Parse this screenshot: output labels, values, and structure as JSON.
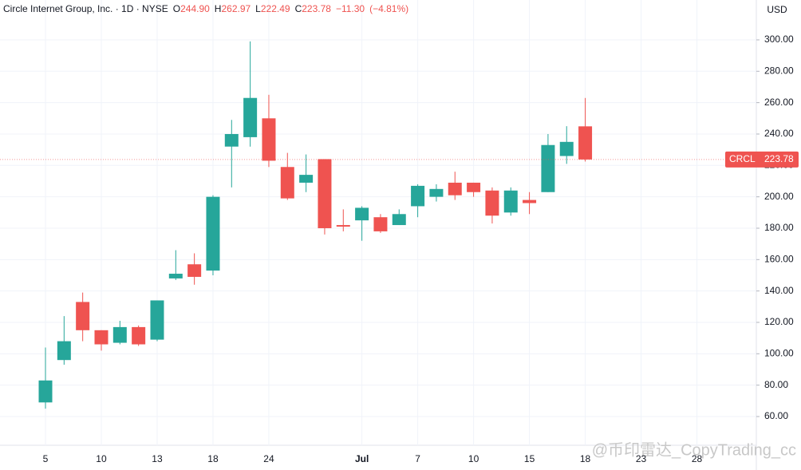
{
  "chart_data": {
    "type": "candlestick",
    "title": "Circle Internet Group, Inc. · 1D · NYSE",
    "legend_values": [
      {
        "name": "O",
        "value": 244.9,
        "label": "244.90"
      },
      {
        "name": "H",
        "value": 262.97,
        "label": "262.97"
      },
      {
        "name": "L",
        "value": 222.49,
        "label": "222.49"
      },
      {
        "name": "C",
        "value": 223.78,
        "label": "223.78"
      }
    ],
    "change": {
      "value": -11.3,
      "label": "−11.30"
    },
    "change_percent": {
      "value": -4.81,
      "label": "(−4.81%)"
    },
    "currency": "USD",
    "symbol": "CRCL",
    "last_price": {
      "value": 223.78,
      "label": "223.78"
    },
    "watermark": "@币印雷达_CopyTrading_cc",
    "categories": [
      "5",
      null,
      null,
      "10",
      null,
      null,
      "13",
      null,
      null,
      "18",
      null,
      null,
      "24",
      null,
      null,
      null,
      null,
      "Jul",
      null,
      null,
      "7",
      null,
      null,
      "10",
      null,
      null,
      "15",
      null,
      null,
      "18",
      null,
      null,
      "23",
      null,
      null,
      "28"
    ],
    "open": [
      69,
      96,
      133,
      115,
      107,
      117,
      109,
      148,
      157,
      153,
      232,
      238,
      250,
      219,
      209,
      224,
      182,
      185,
      187,
      182,
      194,
      200,
      209,
      209,
      204,
      190,
      198,
      203,
      226,
      244.9,
      null,
      null,
      null,
      null,
      null,
      null
    ],
    "high": [
      104,
      124,
      139,
      115,
      121,
      118,
      134,
      166,
      164,
      201,
      249,
      299,
      265,
      228,
      227,
      224,
      192,
      194,
      189,
      192,
      208,
      208,
      216,
      209,
      206,
      206,
      203,
      240,
      245,
      262.97,
      null,
      null,
      null,
      null,
      null,
      null
    ],
    "low": [
      65,
      93,
      108,
      102,
      106,
      105,
      108,
      147,
      144,
      150,
      206,
      232,
      219,
      198,
      203,
      176,
      178,
      172,
      177,
      182,
      187,
      197,
      198,
      200,
      183,
      188,
      189,
      203,
      221,
      222.49,
      null,
      null,
      null,
      null,
      null,
      null
    ],
    "close": [
      83,
      108,
      115,
      106,
      117,
      106,
      134,
      151,
      149,
      200,
      240,
      263,
      223,
      199,
      214,
      180,
      181,
      193,
      178,
      189,
      207,
      205,
      201,
      203,
      188,
      204,
      196,
      233,
      235,
      223.78,
      null,
      null,
      null,
      null,
      null,
      null
    ],
    "up_color": "#26a69a",
    "down_color": "#ef5350",
    "ylim": [
      41.7,
      325.4
    ],
    "yticks": [
      {
        "value": 60,
        "label": "60.00"
      },
      {
        "value": 80,
        "label": "80.00"
      },
      {
        "value": 100,
        "label": "100.00"
      },
      {
        "value": 120,
        "label": "120.00"
      },
      {
        "value": 140,
        "label": "140.00"
      },
      {
        "value": 160,
        "label": "160.00"
      },
      {
        "value": 180,
        "label": "180.00"
      },
      {
        "value": 200,
        "label": "200.00"
      },
      {
        "value": 220,
        "label": "220.00"
      },
      {
        "value": 240,
        "label": "240.00"
      },
      {
        "value": 260,
        "label": "260.00"
      },
      {
        "value": 280,
        "label": "280.00"
      },
      {
        "value": 300,
        "label": "300.00"
      }
    ],
    "grid": true
  }
}
